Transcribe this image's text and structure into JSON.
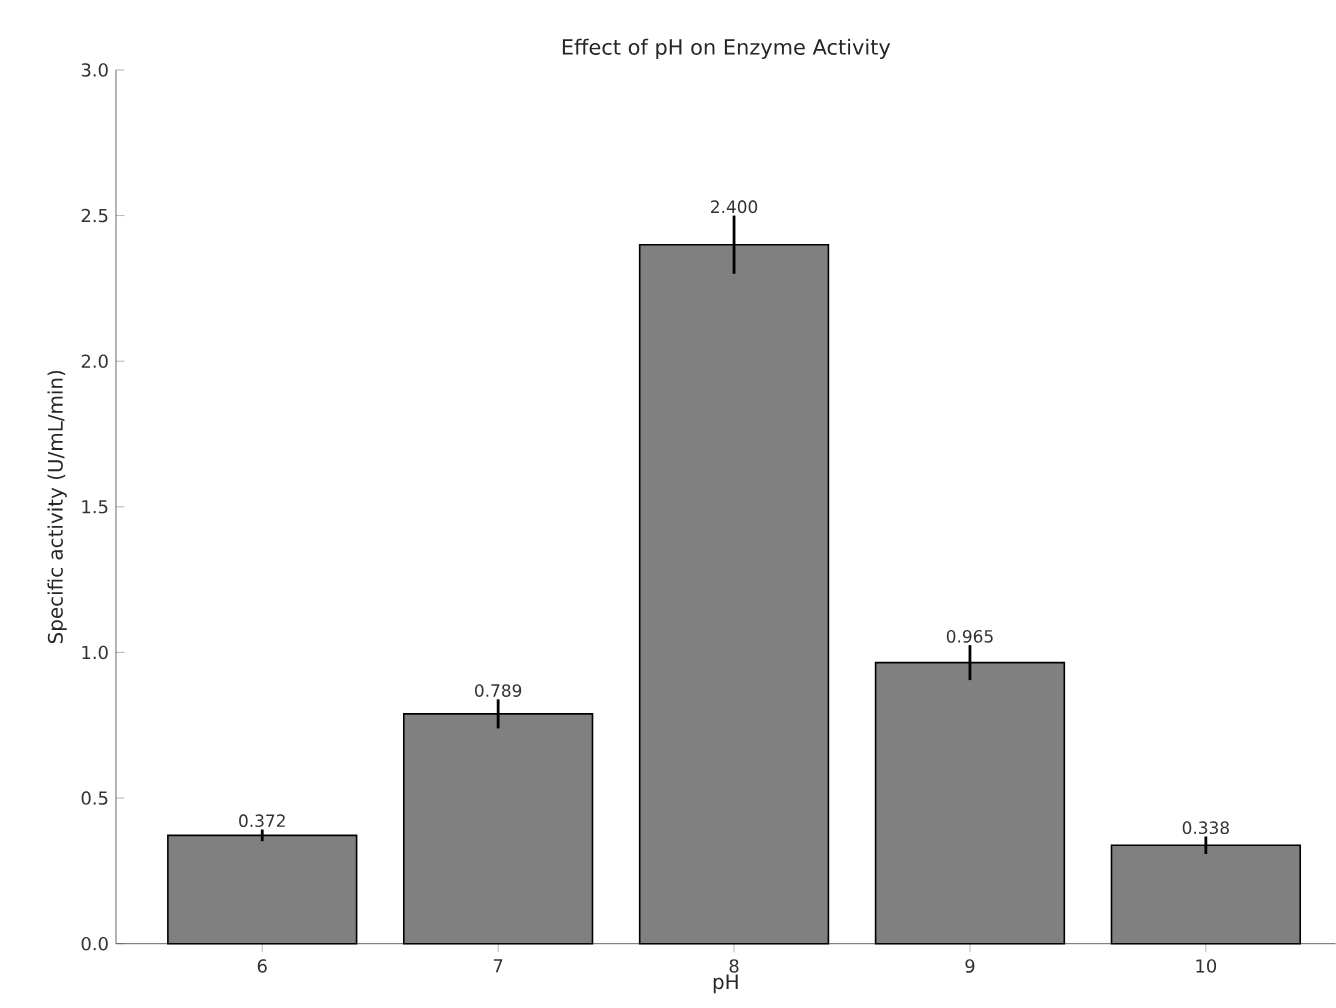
{
  "chart_data": {
    "type": "bar",
    "title": "Effect of pH on Enzyme Activity",
    "xlabel": "pH",
    "ylabel": "Specific activity (U/mL/min)",
    "categories": [
      "6",
      "7",
      "8",
      "9",
      "10"
    ],
    "values": [
      0.372,
      0.789,
      2.4,
      0.965,
      0.338
    ],
    "errors": [
      0.02,
      0.05,
      0.1,
      0.06,
      0.03
    ],
    "value_labels": [
      "0.372",
      "0.789",
      "2.400",
      "0.965",
      "0.338"
    ],
    "color": "#808080",
    "ylim": [
      0,
      3.0
    ],
    "yticks": [
      {
        "value": 0,
        "label": "0.0"
      },
      {
        "value": 0.5,
        "label": "0.5"
      },
      {
        "value": 1.0,
        "label": "1.0"
      },
      {
        "value": 1.5,
        "label": "1.5"
      },
      {
        "value": 2.0,
        "label": "2.0"
      },
      {
        "value": 2.5,
        "label": "2.5"
      },
      {
        "value": 3.0,
        "label": "3.0"
      }
    ],
    "grid": false
  }
}
